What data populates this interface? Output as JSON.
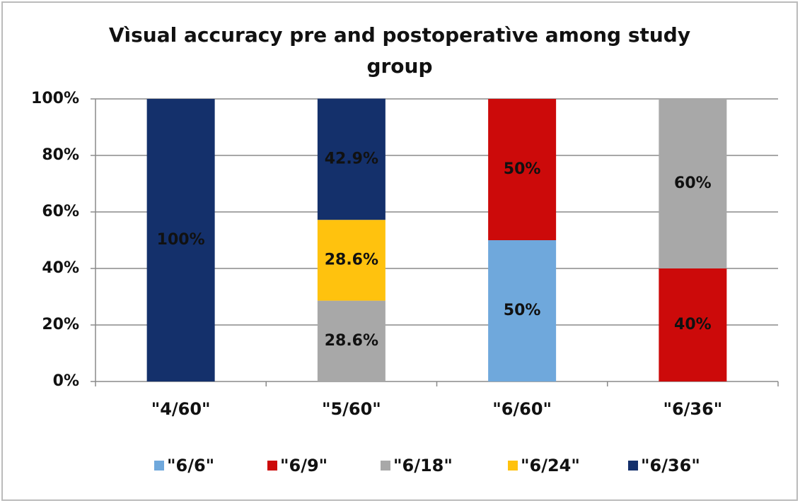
{
  "chart_data": {
    "type": "stacked_bar",
    "title": "Vìsual accuracy pre and postoperatìve among study group",
    "categories": [
      "\"4/60\"",
      "\"5/60\"",
      "\"6/60\"",
      "\"6/36\""
    ],
    "series": [
      {
        "name": "\"6/6\"",
        "color": "#6fa8dc",
        "values": [
          0,
          0,
          50,
          0
        ],
        "value_labels": [
          null,
          null,
          "50%",
          null
        ]
      },
      {
        "name": "\"6/9\"",
        "color": "#cc0a0a",
        "values": [
          0,
          0,
          50,
          40
        ],
        "value_labels": [
          null,
          null,
          "50%",
          "40%"
        ]
      },
      {
        "name": "\"6/18\"",
        "color": "#a8a8a8",
        "values": [
          0,
          28.6,
          0,
          60
        ],
        "value_labels": [
          null,
          "28.6%",
          null,
          "60%"
        ]
      },
      {
        "name": "\"6/24\"",
        "color": "#ffc20e",
        "values": [
          0,
          28.6,
          0,
          0
        ],
        "value_labels": [
          null,
          "28.6%",
          null,
          null
        ]
      },
      {
        "name": "\"6/36\"",
        "color": "#14306b",
        "values": [
          100,
          42.9,
          0,
          0
        ],
        "value_labels": [
          "100%",
          "42.9%",
          null,
          null
        ]
      }
    ],
    "ylim": [
      0,
      100
    ],
    "yticks": [
      {
        "value": 0,
        "label": "0%"
      },
      {
        "value": 20,
        "label": "20%"
      },
      {
        "value": 40,
        "label": "40%"
      },
      {
        "value": 60,
        "label": "60%"
      },
      {
        "value": 80,
        "label": "80%"
      },
      {
        "value": 100,
        "label": "100%"
      }
    ],
    "grid": true,
    "legend": "bottom"
  }
}
